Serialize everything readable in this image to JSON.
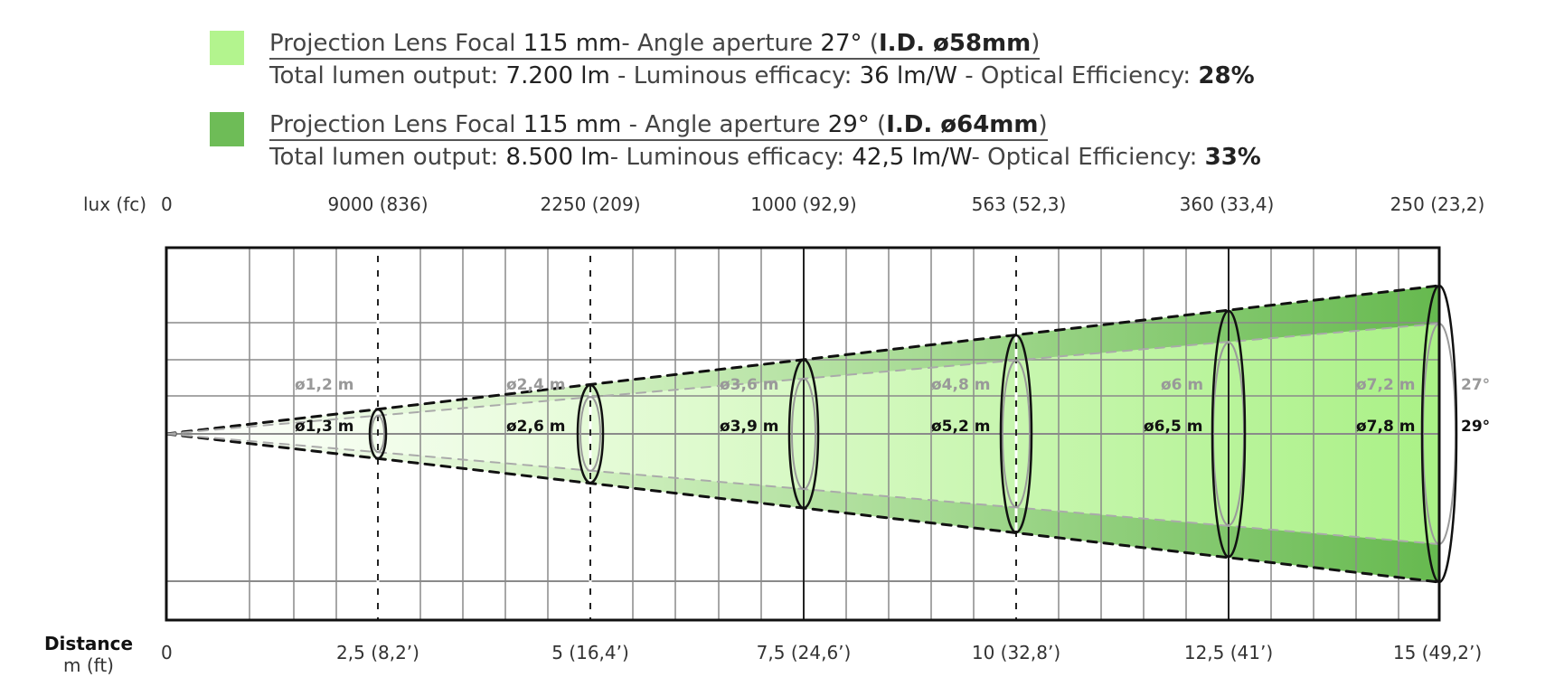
{
  "legend": [
    {
      "color": "#b3f48e",
      "line1": {
        "a": "Projection Lens Focal ",
        "b": "115 mm",
        "c": "- Angle aperture ",
        "d": "27°",
        "e": " (",
        "f": "I.D. ø58mm",
        "g": ")"
      },
      "line2": {
        "a": "Total lumen output: ",
        "b": "7.200 lm",
        "c": " - Luminous efficacy: ",
        "d": "36 lm/W",
        "e": " - Optical Efficiency: ",
        "f": "28%"
      }
    },
    {
      "color": "#6ebc57",
      "line1": {
        "a": "Projection Lens Focal ",
        "b": "115 mm",
        "c": " - Angle aperture ",
        "d": "29°",
        "e": " (",
        "f": "I.D. ø64mm",
        "g": ")"
      },
      "line2": {
        "a": "Total lumen output: ",
        "b": "8.500 lm",
        "c": "- Luminous efficacy: ",
        "d": "42,5 lm/W",
        "e": "- Optical Efficiency: ",
        "f": "33%"
      }
    }
  ],
  "lux_axis": {
    "label": "lux (fc)",
    "ticks": [
      "0",
      "9000 (836)",
      "2250 (209)",
      "1000 (92,9)",
      "563 (52,3)",
      "360 (33,4)",
      "250 (23,2)"
    ]
  },
  "distance_axis": {
    "label": "Distance",
    "unit": "m (ft)",
    "ticks": [
      "0",
      "2,5  (8,2’)",
      "5  (16,4’)",
      "7,5 (24,6’)",
      "10  (32,8’)",
      "12,5 (41’)",
      "15 (49,2’)"
    ]
  },
  "beams": {
    "angle_27": "27°",
    "angle_29": "29°",
    "color_27": "#b3f48e",
    "color_29": "#6ebc57",
    "diameters_27": [
      "ø1,2 m",
      "ø2,4 m",
      "ø3,6 m",
      "ø4,8 m",
      "ø6 m",
      "ø7,2 m"
    ],
    "diameters_29": [
      "ø1,3 m",
      "ø2,6 m",
      "ø3,9 m",
      "ø5,2 m",
      "ø6,5 m",
      "ø7,8 m"
    ]
  }
}
